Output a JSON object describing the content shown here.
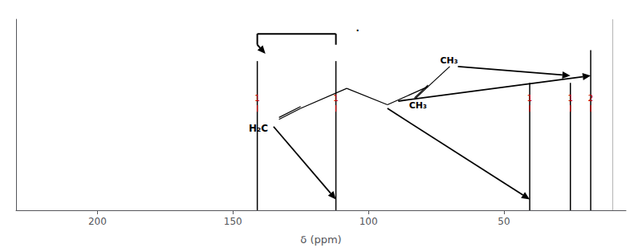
{
  "chart_data": {
    "type": "stem",
    "x": [
      141.0,
      112.0,
      40.5,
      25.5,
      18.0
    ],
    "values": [
      0.82,
      0.82,
      0.7,
      0.7,
      0.88
    ],
    "color": "#000000",
    "xlabel": "δ (ppm)",
    "xlim": [
      230,
      5
    ],
    "xticks": [
      200,
      150,
      100,
      50
    ],
    "ylim": [
      0,
      1.05
    ],
    "yticks": [],
    "tick_labels": "x",
    "grid": false,
    "peak_labels": [
      "1",
      "1",
      "1",
      "1",
      "2"
    ],
    "peak_label_color": "#cc0000",
    "vline": 10.0,
    "vline_color": "#bbbbbb",
    "annotations": [
      "H₂C",
      "CH₃",
      "CH₃",
      "."
    ]
  }
}
